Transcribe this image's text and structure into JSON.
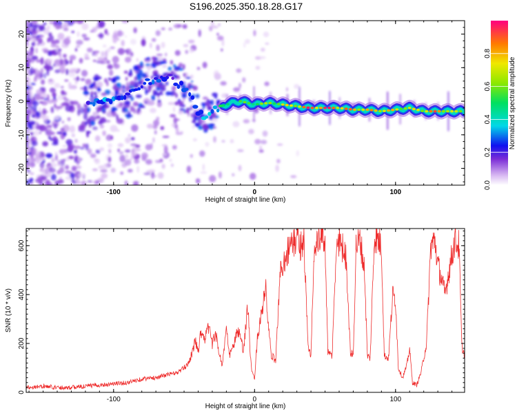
{
  "title": "S196.2025.350.18.28.G17",
  "chart_data": [
    {
      "type": "heatmap",
      "xlabel": "Height of straight line (km)",
      "ylabel": "Frequency (Hz)",
      "xlim": [
        -162,
        149
      ],
      "ylim": [
        -25,
        24
      ],
      "xticks": [
        "-100",
        "0",
        "100"
      ],
      "yticks": [
        "20",
        "10",
        "0",
        "-10",
        "-20"
      ],
      "ridge": {
        "x": [
          -115,
          -100,
          -85,
          -75,
          -60,
          -50,
          -45,
          -40,
          -35,
          -28,
          -20,
          -10,
          0,
          10,
          20,
          30,
          40,
          50,
          60,
          70,
          80,
          90,
          100,
          110,
          120,
          130,
          140,
          149
        ],
        "frequency": [
          0,
          1,
          3,
          6,
          7,
          4,
          2,
          -3,
          -5,
          -2,
          -1,
          0,
          -1,
          -0.5,
          -1,
          -1.5,
          -2,
          -2,
          -2,
          -2.5,
          -2.5,
          -3,
          -2.5,
          -2,
          -3,
          -3,
          -3,
          -3
        ],
        "amplitude": [
          0.25,
          0.3,
          0.2,
          0.25,
          0.2,
          0.25,
          0.2,
          0.25,
          0.3,
          0.35,
          0.5,
          0.55,
          0.6,
          0.65,
          0.7,
          0.8,
          0.95,
          0.95,
          0.9,
          0.85,
          0.8,
          0.85,
          0.75,
          0.7,
          0.8,
          0.9,
          0.7,
          0.6
        ]
      },
      "colorbar": {
        "label": "Normalized spectral amplitude",
        "ticks": [
          "0.0",
          "0.2",
          "0.4",
          "0.6",
          "0.8"
        ],
        "range": [
          0,
          1
        ]
      }
    },
    {
      "type": "line",
      "xlabel": "Height of straight line (km)",
      "ylabel": "SNR (10 * v/v)",
      "xlim": [
        -162,
        149
      ],
      "ylim": [
        0,
        670
      ],
      "xticks": [
        "-100",
        "0",
        "100"
      ],
      "yticks": [
        "0",
        "200",
        "400",
        "600"
      ],
      "series": [
        {
          "name": "SNR",
          "color": "#ee2a2a",
          "x": [
            -162,
            -150,
            -140,
            -130,
            -120,
            -110,
            -100,
            -90,
            -80,
            -70,
            -60,
            -55,
            -50,
            -47,
            -45,
            -42,
            -40,
            -38,
            -35,
            -32,
            -30,
            -28,
            -25,
            -23,
            -20,
            -18,
            -15,
            -12,
            -10,
            -8,
            -6,
            -5,
            -4,
            -3,
            -2,
            0,
            2,
            5,
            8,
            10,
            12,
            15,
            18,
            20,
            22,
            25,
            28,
            30,
            32,
            35,
            38,
            40,
            42,
            45,
            48,
            50,
            52,
            55,
            58,
            60,
            62,
            65,
            68,
            70,
            72,
            75,
            78,
            80,
            82,
            85,
            88,
            90,
            92,
            95,
            98,
            100,
            102,
            105,
            108,
            110,
            112,
            115,
            118,
            120,
            122,
            125,
            128,
            130,
            132,
            135,
            138,
            140,
            142,
            145,
            147,
            149
          ],
          "values": [
            20,
            25,
            20,
            20,
            25,
            30,
            35,
            40,
            55,
            60,
            75,
            80,
            100,
            120,
            150,
            210,
            170,
            250,
            220,
            280,
            190,
            250,
            160,
            110,
            260,
            150,
            190,
            250,
            230,
            160,
            290,
            350,
            280,
            150,
            80,
            60,
            220,
            330,
            420,
            250,
            150,
            130,
            480,
            520,
            560,
            600,
            610,
            640,
            600,
            620,
            180,
            150,
            560,
            610,
            640,
            620,
            160,
            150,
            590,
            620,
            600,
            550,
            160,
            150,
            600,
            620,
            500,
            150,
            140,
            640,
            620,
            600,
            150,
            140,
            400,
            380,
            100,
            60,
            110,
            180,
            40,
            30,
            80,
            140,
            200,
            600,
            620,
            520,
            480,
            400,
            500,
            560,
            620,
            600,
            190,
            150
          ]
        }
      ]
    }
  ]
}
